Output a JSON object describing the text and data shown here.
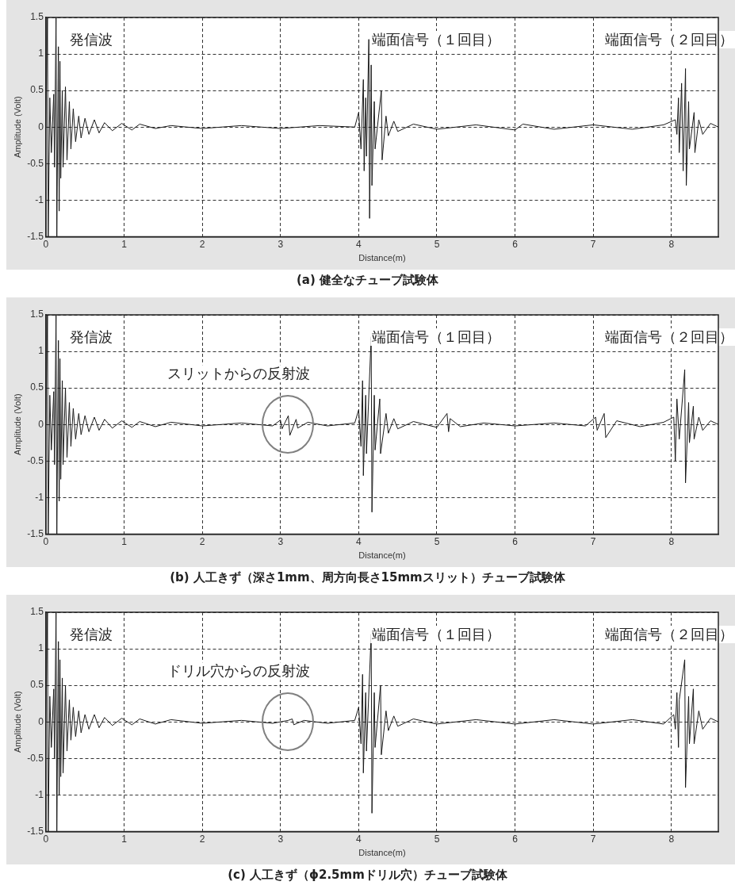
{
  "chart_data": [
    {
      "type": "line",
      "title": "(a) 健全なチューブ試験体",
      "xlabel": "Distance(m)",
      "ylabel": "Amplitude (Volt)",
      "xlim": [
        0,
        8.6
      ],
      "xticks": [
        0,
        1,
        2,
        3,
        4,
        5,
        6,
        7,
        8
      ],
      "ylim": [
        -1.5,
        1.5
      ],
      "yticks": [
        -1.5,
        -1,
        -0.5,
        0,
        0.5,
        1,
        1.5
      ],
      "grid": true,
      "annotations": [
        "発信波",
        "端面信号（１回目）",
        "端面信号（２回目）"
      ],
      "series": [
        {
          "color": "#1a1a1a",
          "x": [
            0,
            0.02,
            0.03,
            0.05,
            0.07,
            0.1,
            0.11,
            0.13,
            0.14,
            0.16,
            0.17,
            0.18,
            0.19,
            0.21,
            0.22,
            0.25,
            0.27,
            0.3,
            0.32,
            0.35,
            0.38,
            0.42,
            0.45,
            0.5,
            0.55,
            0.62,
            0.68,
            0.75,
            0.85,
            0.97,
            1.1,
            1.2,
            1.4,
            1.6,
            2.0,
            2.5,
            3.0,
            3.5,
            3.95,
            4.0,
            4.03,
            4.06,
            4.07,
            4.09,
            4.1,
            4.13,
            4.14,
            4.16,
            4.17,
            4.2,
            4.21,
            4.29,
            4.3,
            4.35,
            4.38,
            4.45,
            4.5,
            4.7,
            5.0,
            5.5,
            6.0,
            6.1,
            6.5,
            7.0,
            7.5,
            7.9,
            8.05,
            8.07,
            8.09,
            8.1,
            8.13,
            8.15,
            8.18,
            8.19,
            8.22,
            8.23,
            8.29,
            8.3,
            8.35,
            8.4,
            8.5,
            8.6
          ],
          "values": [
            0,
            1.5,
            -1.5,
            0.4,
            -0.35,
            0.45,
            -0.55,
            1.5,
            -1.5,
            1.1,
            -1.15,
            0.9,
            -0.7,
            0.5,
            -0.55,
            0.55,
            -0.45,
            0.35,
            -0.3,
            0.25,
            -0.2,
            0.15,
            -0.15,
            0.12,
            -0.1,
            0.1,
            -0.08,
            0.06,
            -0.05,
            0.05,
            -0.04,
            0.04,
            -0.02,
            0.02,
            -0.02,
            0.02,
            -0.02,
            0.02,
            0,
            0.2,
            -0.3,
            0.65,
            -0.6,
            0.4,
            -0.4,
            1.2,
            -1.25,
            0.85,
            -0.8,
            0.35,
            -0.3,
            0.5,
            -0.45,
            0.15,
            -0.12,
            0.08,
            -0.06,
            0.04,
            -0.03,
            0.03,
            -0.04,
            0.04,
            -0.03,
            0.03,
            -0.03,
            0.03,
            0.1,
            -0.1,
            0.4,
            -0.35,
            0.6,
            -0.6,
            0.8,
            -0.8,
            0.35,
            -0.3,
            0.2,
            -0.35,
            0.1,
            -0.1,
            0.05,
            0
          ]
        }
      ]
    },
    {
      "type": "line",
      "title": "(b) 人工きず（深さ1mm、周方向長さ15mmスリット）チューブ試験体",
      "xlabel": "Distance(m)",
      "ylabel": "Amplitude (Volt)",
      "xlim": [
        0,
        8.6
      ],
      "xticks": [
        0,
        1,
        2,
        3,
        4,
        5,
        6,
        7,
        8
      ],
      "ylim": [
        -1.5,
        1.5
      ],
      "yticks": [
        -1.5,
        -1,
        -0.5,
        0,
        0.5,
        1,
        1.5
      ],
      "grid": true,
      "annotations": [
        "発信波",
        "端面信号（１回目）",
        "端面信号（２回目）",
        "スリットからの反射波"
      ],
      "series": [
        {
          "color": "#1a1a1a",
          "x": [
            0,
            0.02,
            0.03,
            0.05,
            0.07,
            0.1,
            0.11,
            0.13,
            0.14,
            0.16,
            0.17,
            0.18,
            0.19,
            0.21,
            0.22,
            0.25,
            0.27,
            0.3,
            0.32,
            0.35,
            0.38,
            0.42,
            0.45,
            0.5,
            0.55,
            0.62,
            0.68,
            0.75,
            0.85,
            0.97,
            1.1,
            1.2,
            1.4,
            1.6,
            2.0,
            2.5,
            2.9,
            3.0,
            3.02,
            3.1,
            3.12,
            3.2,
            3.22,
            3.35,
            3.6,
            3.95,
            4.0,
            4.03,
            4.05,
            4.06,
            4.09,
            4.1,
            4.16,
            4.17,
            4.2,
            4.21,
            4.27,
            4.28,
            4.35,
            4.38,
            4.45,
            4.5,
            4.7,
            5.0,
            5.13,
            5.15,
            5.17,
            5.3,
            5.6,
            6.0,
            6.5,
            6.9,
            7.03,
            7.05,
            7.14,
            7.16,
            7.3,
            7.6,
            7.9,
            8.03,
            8.05,
            8.07,
            8.1,
            8.17,
            8.18,
            8.22,
            8.23,
            8.28,
            8.29,
            8.35,
            8.4,
            8.5,
            8.6
          ],
          "values": [
            0,
            1.5,
            -1.5,
            0.4,
            -0.35,
            0.45,
            -0.55,
            1.5,
            -1.5,
            1.15,
            -1.05,
            0.9,
            -0.75,
            0.6,
            -0.55,
            0.5,
            -0.45,
            0.3,
            -0.3,
            0.22,
            -0.2,
            0.15,
            -0.14,
            0.12,
            -0.1,
            0.1,
            -0.08,
            0.07,
            -0.05,
            0.05,
            -0.04,
            0.04,
            -0.03,
            0.03,
            -0.02,
            0.02,
            -0.02,
            0.06,
            -0.06,
            0.12,
            -0.15,
            0.07,
            -0.05,
            0.03,
            -0.02,
            0.02,
            0.2,
            -0.3,
            0.6,
            -0.7,
            0.4,
            -0.4,
            1.2,
            -1.2,
            0.4,
            -0.35,
            0.35,
            -0.4,
            0.15,
            -0.12,
            0.08,
            -0.06,
            0.04,
            -0.04,
            0.15,
            -0.1,
            0.08,
            -0.03,
            0.02,
            -0.02,
            0.02,
            -0.02,
            0.1,
            -0.08,
            0.15,
            -0.18,
            0.05,
            -0.03,
            0.03,
            0.1,
            -0.5,
            0.35,
            -0.2,
            0.75,
            -0.8,
            0.3,
            -0.25,
            0.25,
            -0.2,
            0.1,
            -0.08,
            0.05,
            0
          ]
        }
      ]
    },
    {
      "type": "line",
      "title": "(c) 人工きず（ϕ2.5mmドリル穴）チューブ試験体",
      "xlabel": "Distance(m)",
      "ylabel": "Amplitude (Volt)",
      "xlim": [
        0,
        8.6
      ],
      "xticks": [
        0,
        1,
        2,
        3,
        4,
        5,
        6,
        7,
        8
      ],
      "ylim": [
        -1.5,
        1.5
      ],
      "yticks": [
        -1.5,
        -1,
        -0.5,
        0,
        0.5,
        1,
        1.5
      ],
      "grid": true,
      "annotations": [
        "発信波",
        "端面信号（１回目）",
        "端面信号（２回目）",
        "ドリル穴からの反射波"
      ],
      "series": [
        {
          "color": "#1a1a1a",
          "x": [
            0,
            0.02,
            0.03,
            0.05,
            0.07,
            0.1,
            0.11,
            0.13,
            0.14,
            0.16,
            0.17,
            0.18,
            0.19,
            0.21,
            0.22,
            0.25,
            0.27,
            0.3,
            0.32,
            0.35,
            0.38,
            0.42,
            0.45,
            0.5,
            0.55,
            0.62,
            0.68,
            0.75,
            0.85,
            0.97,
            1.1,
            1.2,
            1.4,
            1.6,
            2.0,
            2.5,
            2.9,
            3.1,
            3.15,
            3.17,
            3.3,
            3.6,
            3.95,
            4.0,
            4.03,
            4.05,
            4.06,
            4.09,
            4.1,
            4.16,
            4.17,
            4.2,
            4.21,
            4.28,
            4.29,
            4.35,
            4.38,
            4.45,
            4.5,
            4.7,
            5.0,
            5.5,
            6.0,
            6.5,
            7.0,
            7.5,
            7.9,
            8.03,
            8.05,
            8.07,
            8.09,
            8.1,
            8.17,
            8.18,
            8.22,
            8.23,
            8.28,
            8.29,
            8.35,
            8.4,
            8.5,
            8.6
          ],
          "values": [
            0,
            1.5,
            -1.5,
            0.35,
            -0.35,
            0.45,
            -0.5,
            1.5,
            -1.5,
            1.1,
            -1.0,
            0.85,
            -0.75,
            0.6,
            -0.7,
            0.5,
            -0.4,
            0.3,
            -0.25,
            0.2,
            -0.2,
            0.15,
            -0.15,
            0.1,
            -0.1,
            0.1,
            -0.08,
            0.06,
            -0.05,
            0.05,
            -0.04,
            0.04,
            -0.03,
            0.03,
            -0.02,
            0.02,
            -0.02,
            0.02,
            0.04,
            -0.04,
            0.02,
            -0.02,
            0.02,
            0.2,
            -0.3,
            0.65,
            -0.7,
            0.4,
            -0.4,
            1.2,
            -1.25,
            0.4,
            -0.35,
            0.5,
            -0.45,
            0.15,
            -0.12,
            0.08,
            -0.06,
            0.04,
            -0.03,
            0.03,
            -0.03,
            0.03,
            -0.03,
            0.03,
            -0.03,
            0.1,
            -0.1,
            0.4,
            -0.35,
            0.3,
            0.85,
            -0.9,
            0.35,
            -0.3,
            0.45,
            -0.3,
            0.15,
            -0.1,
            0.05,
            0
          ]
        }
      ]
    }
  ]
}
